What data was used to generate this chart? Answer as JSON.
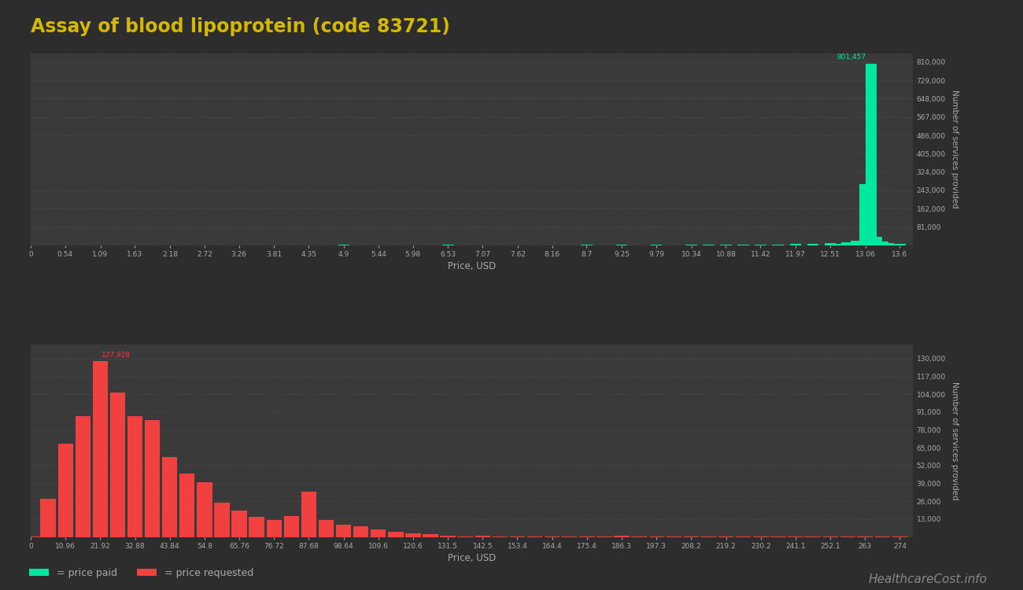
{
  "title": "Assay of blood lipoprotein (code 83721)",
  "title_color": "#d4b800",
  "background_color": "#2d2d2d",
  "axes_background": "#3a3a3a",
  "grid_color": "#555555",
  "text_color": "#aaaaaa",
  "top_chart": {
    "xlabel": "Price, USD",
    "ylabel": "Number of services provided",
    "bar_color": "#00e8a0",
    "x_ticks": [
      0,
      0.54,
      1.09,
      1.63,
      2.18,
      2.72,
      3.26,
      3.81,
      4.35,
      4.9,
      5.44,
      5.98,
      6.53,
      7.07,
      7.62,
      8.16,
      8.7,
      9.25,
      9.79,
      10.34,
      10.88,
      11.42,
      11.97,
      12.51,
      13.06,
      13.6
    ],
    "xlim": [
      0,
      13.8
    ],
    "ylim": [
      0,
      850000
    ],
    "y_ticks": [
      81000,
      162000,
      243000,
      324000,
      405000,
      486000,
      567000,
      648000,
      729000,
      810000
    ],
    "peak_label": "801,457",
    "peak_x": 13.15,
    "peak_y": 801457,
    "bar_width": 0.18,
    "bars": [
      [
        0.05,
        80
      ],
      [
        2.2,
        150
      ],
      [
        4.9,
        300
      ],
      [
        6.53,
        200
      ],
      [
        8.7,
        250
      ],
      [
        9.25,
        2500
      ],
      [
        9.79,
        600
      ],
      [
        10.34,
        1200
      ],
      [
        10.61,
        800
      ],
      [
        10.88,
        2000
      ],
      [
        11.15,
        1500
      ],
      [
        11.42,
        2800
      ],
      [
        11.69,
        2200
      ],
      [
        11.97,
        4500
      ],
      [
        12.24,
        6000
      ],
      [
        12.51,
        9000
      ],
      [
        12.65,
        7000
      ],
      [
        12.78,
        12000
      ],
      [
        12.92,
        20000
      ],
      [
        13.06,
        270000
      ],
      [
        13.15,
        801457
      ],
      [
        13.24,
        35000
      ],
      [
        13.33,
        15000
      ],
      [
        13.42,
        8000
      ],
      [
        13.6,
        4000
      ]
    ]
  },
  "bottom_chart": {
    "xlabel": "Price, USD",
    "ylabel": "Number of services provided",
    "bar_color": "#f04040",
    "x_ticks": [
      0,
      10.96,
      21.92,
      32.88,
      43.84,
      54.8,
      65.76,
      76.72,
      87.68,
      98.64,
      109.6,
      120.6,
      131.5,
      142.5,
      153.4,
      164.4,
      175.4,
      186.3,
      197.3,
      208.2,
      219.2,
      230.2,
      241.1,
      252.1,
      263,
      274
    ],
    "xlim": [
      0,
      278
    ],
    "ylim": [
      0,
      140000
    ],
    "y_ticks": [
      13000,
      26000,
      39000,
      52000,
      65000,
      78000,
      91000,
      104000,
      117000,
      130000
    ],
    "peak_label": "127,928",
    "peak_x": 21.92,
    "peak_y": 127928,
    "bar_width": 4.8,
    "bars": [
      [
        1.0,
        500
      ],
      [
        5.48,
        28000
      ],
      [
        10.96,
        68000
      ],
      [
        16.44,
        88000
      ],
      [
        21.92,
        127928
      ],
      [
        27.4,
        105000
      ],
      [
        32.88,
        88000
      ],
      [
        38.36,
        85000
      ],
      [
        43.84,
        58000
      ],
      [
        49.32,
        46000
      ],
      [
        54.8,
        40000
      ],
      [
        60.28,
        25000
      ],
      [
        65.76,
        19000
      ],
      [
        71.24,
        14500
      ],
      [
        76.72,
        12500
      ],
      [
        82.2,
        15000
      ],
      [
        87.68,
        33000
      ],
      [
        93.16,
        12500
      ],
      [
        98.64,
        9000
      ],
      [
        104.12,
        7500
      ],
      [
        109.6,
        5500
      ],
      [
        115.08,
        3800
      ],
      [
        120.6,
        2800
      ],
      [
        126.04,
        2200
      ],
      [
        131.5,
        900
      ],
      [
        136.98,
        400
      ],
      [
        142.5,
        600
      ],
      [
        147.96,
        350
      ],
      [
        153.4,
        250
      ],
      [
        158.88,
        180
      ],
      [
        164.4,
        120
      ],
      [
        169.88,
        100
      ],
      [
        175.4,
        150
      ],
      [
        180.88,
        120
      ],
      [
        186.3,
        900
      ],
      [
        191.78,
        300
      ],
      [
        197.3,
        200
      ],
      [
        202.78,
        160
      ],
      [
        208.2,
        130
      ],
      [
        213.68,
        100
      ],
      [
        219.2,
        90
      ],
      [
        224.68,
        80
      ],
      [
        230.2,
        70
      ],
      [
        235.68,
        60
      ],
      [
        241.1,
        55
      ],
      [
        246.58,
        50
      ],
      [
        252.1,
        45
      ],
      [
        257.58,
        40
      ],
      [
        263.0,
        35
      ],
      [
        268.48,
        25
      ],
      [
        274.0,
        15
      ]
    ]
  },
  "legend": {
    "paid_color": "#00e8a0",
    "requested_color": "#f04040",
    "paid_label": "= price paid",
    "requested_label": "= price requested"
  },
  "watermark": "HealthcareCost.info"
}
